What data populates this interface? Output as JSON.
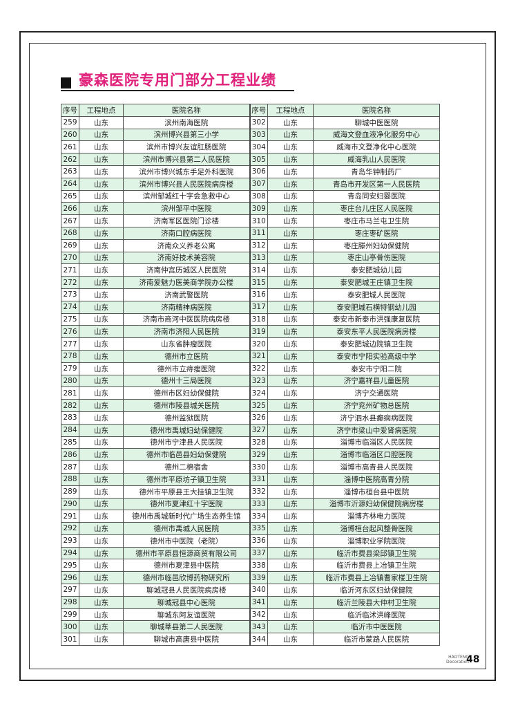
{
  "title": "豪森医院专用门部分工程业绩",
  "headers": [
    "序号",
    "工程地点",
    "医院名称",
    "序号",
    "工程地点",
    "医院名称"
  ],
  "rows": [
    [
      259,
      "山东",
      "滨州南海医院",
      302,
      "山东",
      "聊城中医医院"
    ],
    [
      260,
      "山东",
      "滨州博兴县第三小学",
      303,
      "山东",
      "威海文登血液净化服务中心"
    ],
    [
      261,
      "山东",
      "滨州市博兴友谊肛肠医院",
      304,
      "山东",
      "威海市文登净化中心医院"
    ],
    [
      262,
      "山东",
      "滨州市博兴县第二人民医院",
      305,
      "山东",
      "威海乳山人民医院"
    ],
    [
      263,
      "山东",
      "滨州市博兴城东手足外科医院",
      306,
      "山东",
      "青岛华钟制药厂"
    ],
    [
      264,
      "山东",
      "滨州市博兴县人民医院病房楼",
      307,
      "山东",
      "青岛市开发区第一人民医院"
    ],
    [
      265,
      "山东",
      "滨州邹城红十字会急救中心",
      308,
      "山东",
      "青岛同安妇婴医院"
    ],
    [
      266,
      "山东",
      "滨州邹平中医院",
      309,
      "山东",
      "枣庄台儿庄区人民医院"
    ],
    [
      267,
      "山东",
      "济南军区医院门诊楼",
      310,
      "山东",
      "枣庄市马兰屯卫生院"
    ],
    [
      268,
      "山东",
      "济南口腔病医院",
      311,
      "山东",
      "枣庄枣矿医院"
    ],
    [
      269,
      "山东",
      "济南众义养老公寓",
      312,
      "山东",
      "枣庄滕州妇幼保健院"
    ],
    [
      270,
      "山东",
      "济南好技术美容院",
      313,
      "山东",
      "枣庄山亭骨伤医院"
    ],
    [
      271,
      "山东",
      "济南仲宫历城区人民医院",
      314,
      "山东",
      "泰安肥城幼儿园"
    ],
    [
      272,
      "山东",
      "济南爱魅力医美商学院办公楼",
      315,
      "山东",
      "泰安肥城王庄镇卫生院"
    ],
    [
      273,
      "山东",
      "济南武警医院",
      316,
      "山东",
      "泰安肥城人民医院"
    ],
    [
      274,
      "山东",
      "济南精神病医院",
      317,
      "山东",
      "泰安肥城石横特钢幼儿园"
    ],
    [
      275,
      "山东",
      "济南市商河中医医院病房楼",
      318,
      "山东",
      "泰安市新泰市洪强康复医院"
    ],
    [
      276,
      "山东",
      "济南市济阳人民医院",
      319,
      "山东",
      "泰安东平人民医院病房楼"
    ],
    [
      277,
      "山东",
      "山东省肿瘤医院",
      320,
      "山东",
      "泰安肥城边院镇卫生院"
    ],
    [
      278,
      "山东",
      "德州市立医院",
      321,
      "山东",
      "泰安市宁阳实验高级中学"
    ],
    [
      279,
      "山东",
      "德州市立痔瘘医院",
      322,
      "山东",
      "泰安市宁阳二院"
    ],
    [
      280,
      "山东",
      "德州十三局医院",
      323,
      "山东",
      "济宁嘉祥县儿童医院"
    ],
    [
      281,
      "山东",
      "德州市区妇幼保健院",
      324,
      "山东",
      "济宁交通医院"
    ],
    [
      282,
      "山东",
      "德州市陵县城关医院",
      325,
      "山东",
      "济宁兖州矿物总医院"
    ],
    [
      283,
      "山东",
      "德州监狱医院",
      326,
      "山东",
      "济宁泗水县癫痫病医院"
    ],
    [
      284,
      "山东",
      "德州市禹城妇幼保健院",
      327,
      "山东",
      "济宁市梁山中爱肾病医院"
    ],
    [
      285,
      "山东",
      "德州市宁津县人民医院",
      328,
      "山东",
      "淄博市临淄区人民医院"
    ],
    [
      286,
      "山东",
      "德州市临邑县妇幼保健院",
      329,
      "山东",
      "淄博市临淄区口腔医院"
    ],
    [
      287,
      "山东",
      "德州二棉宿舍",
      330,
      "山东",
      "淄博市高青县人民医院"
    ],
    [
      288,
      "山东",
      "德州市平原坊子镇卫生院",
      331,
      "山东",
      "淄博中医院高青分院"
    ],
    [
      289,
      "山东",
      "德州市平原县王大挂镇卫生院",
      332,
      "山东",
      "淄博市桓台县中医院"
    ],
    [
      290,
      "山东",
      "德州市夏津红十字医院",
      333,
      "山东",
      "淄博市沂源妇幼保健院病房楼"
    ],
    [
      291,
      "山东",
      "德州市禹城新时代广场生态养生馆",
      334,
      "山东",
      "淄博齐林电力医院"
    ],
    [
      292,
      "山东",
      "德州市禹城人民医院",
      335,
      "山东",
      "淄博桓台起风整骨医院"
    ],
    [
      293,
      "山东",
      "德州市中医院（老院）",
      336,
      "山东",
      "淄博职业学院医院"
    ],
    [
      294,
      "山东",
      "德州市平原县恒源商贸有限公司",
      337,
      "山东",
      "临沂市费县梁邱镇卫生院"
    ],
    [
      295,
      "山东",
      "德州市夏津县中医院",
      338,
      "山东",
      "临沂市费县上冶镇卫生院"
    ],
    [
      296,
      "山东",
      "德州市临邑欣博药物研究所",
      339,
      "山东",
      "临沂市费县上冶镇曹家楼卫生院"
    ],
    [
      297,
      "山东",
      "聊城冠县人民医院病房楼",
      340,
      "山东",
      "临沂河东区妇幼保健院"
    ],
    [
      298,
      "山东",
      "聊城冠县中心医院",
      341,
      "山东",
      "临沂兰陵县大仲村卫生院"
    ],
    [
      299,
      "山东",
      "聊城东阿友谊医院",
      342,
      "山东",
      "临沂临沭洪峰医院"
    ],
    [
      300,
      "山东",
      "聊城莘县第二人民医院",
      343,
      "山东",
      "临沂市中医医院"
    ],
    [
      301,
      "山东",
      "聊城市高唐县中医院",
      344,
      "山东",
      "临沂市蒙路人民医院"
    ]
  ],
  "footer": {
    "brand_line1": "HAOTENG",
    "brand_line2": "Decoration",
    "page_number": "48"
  },
  "colors": {
    "title": "#e0207a",
    "row_highlight": "#dff4e5"
  }
}
